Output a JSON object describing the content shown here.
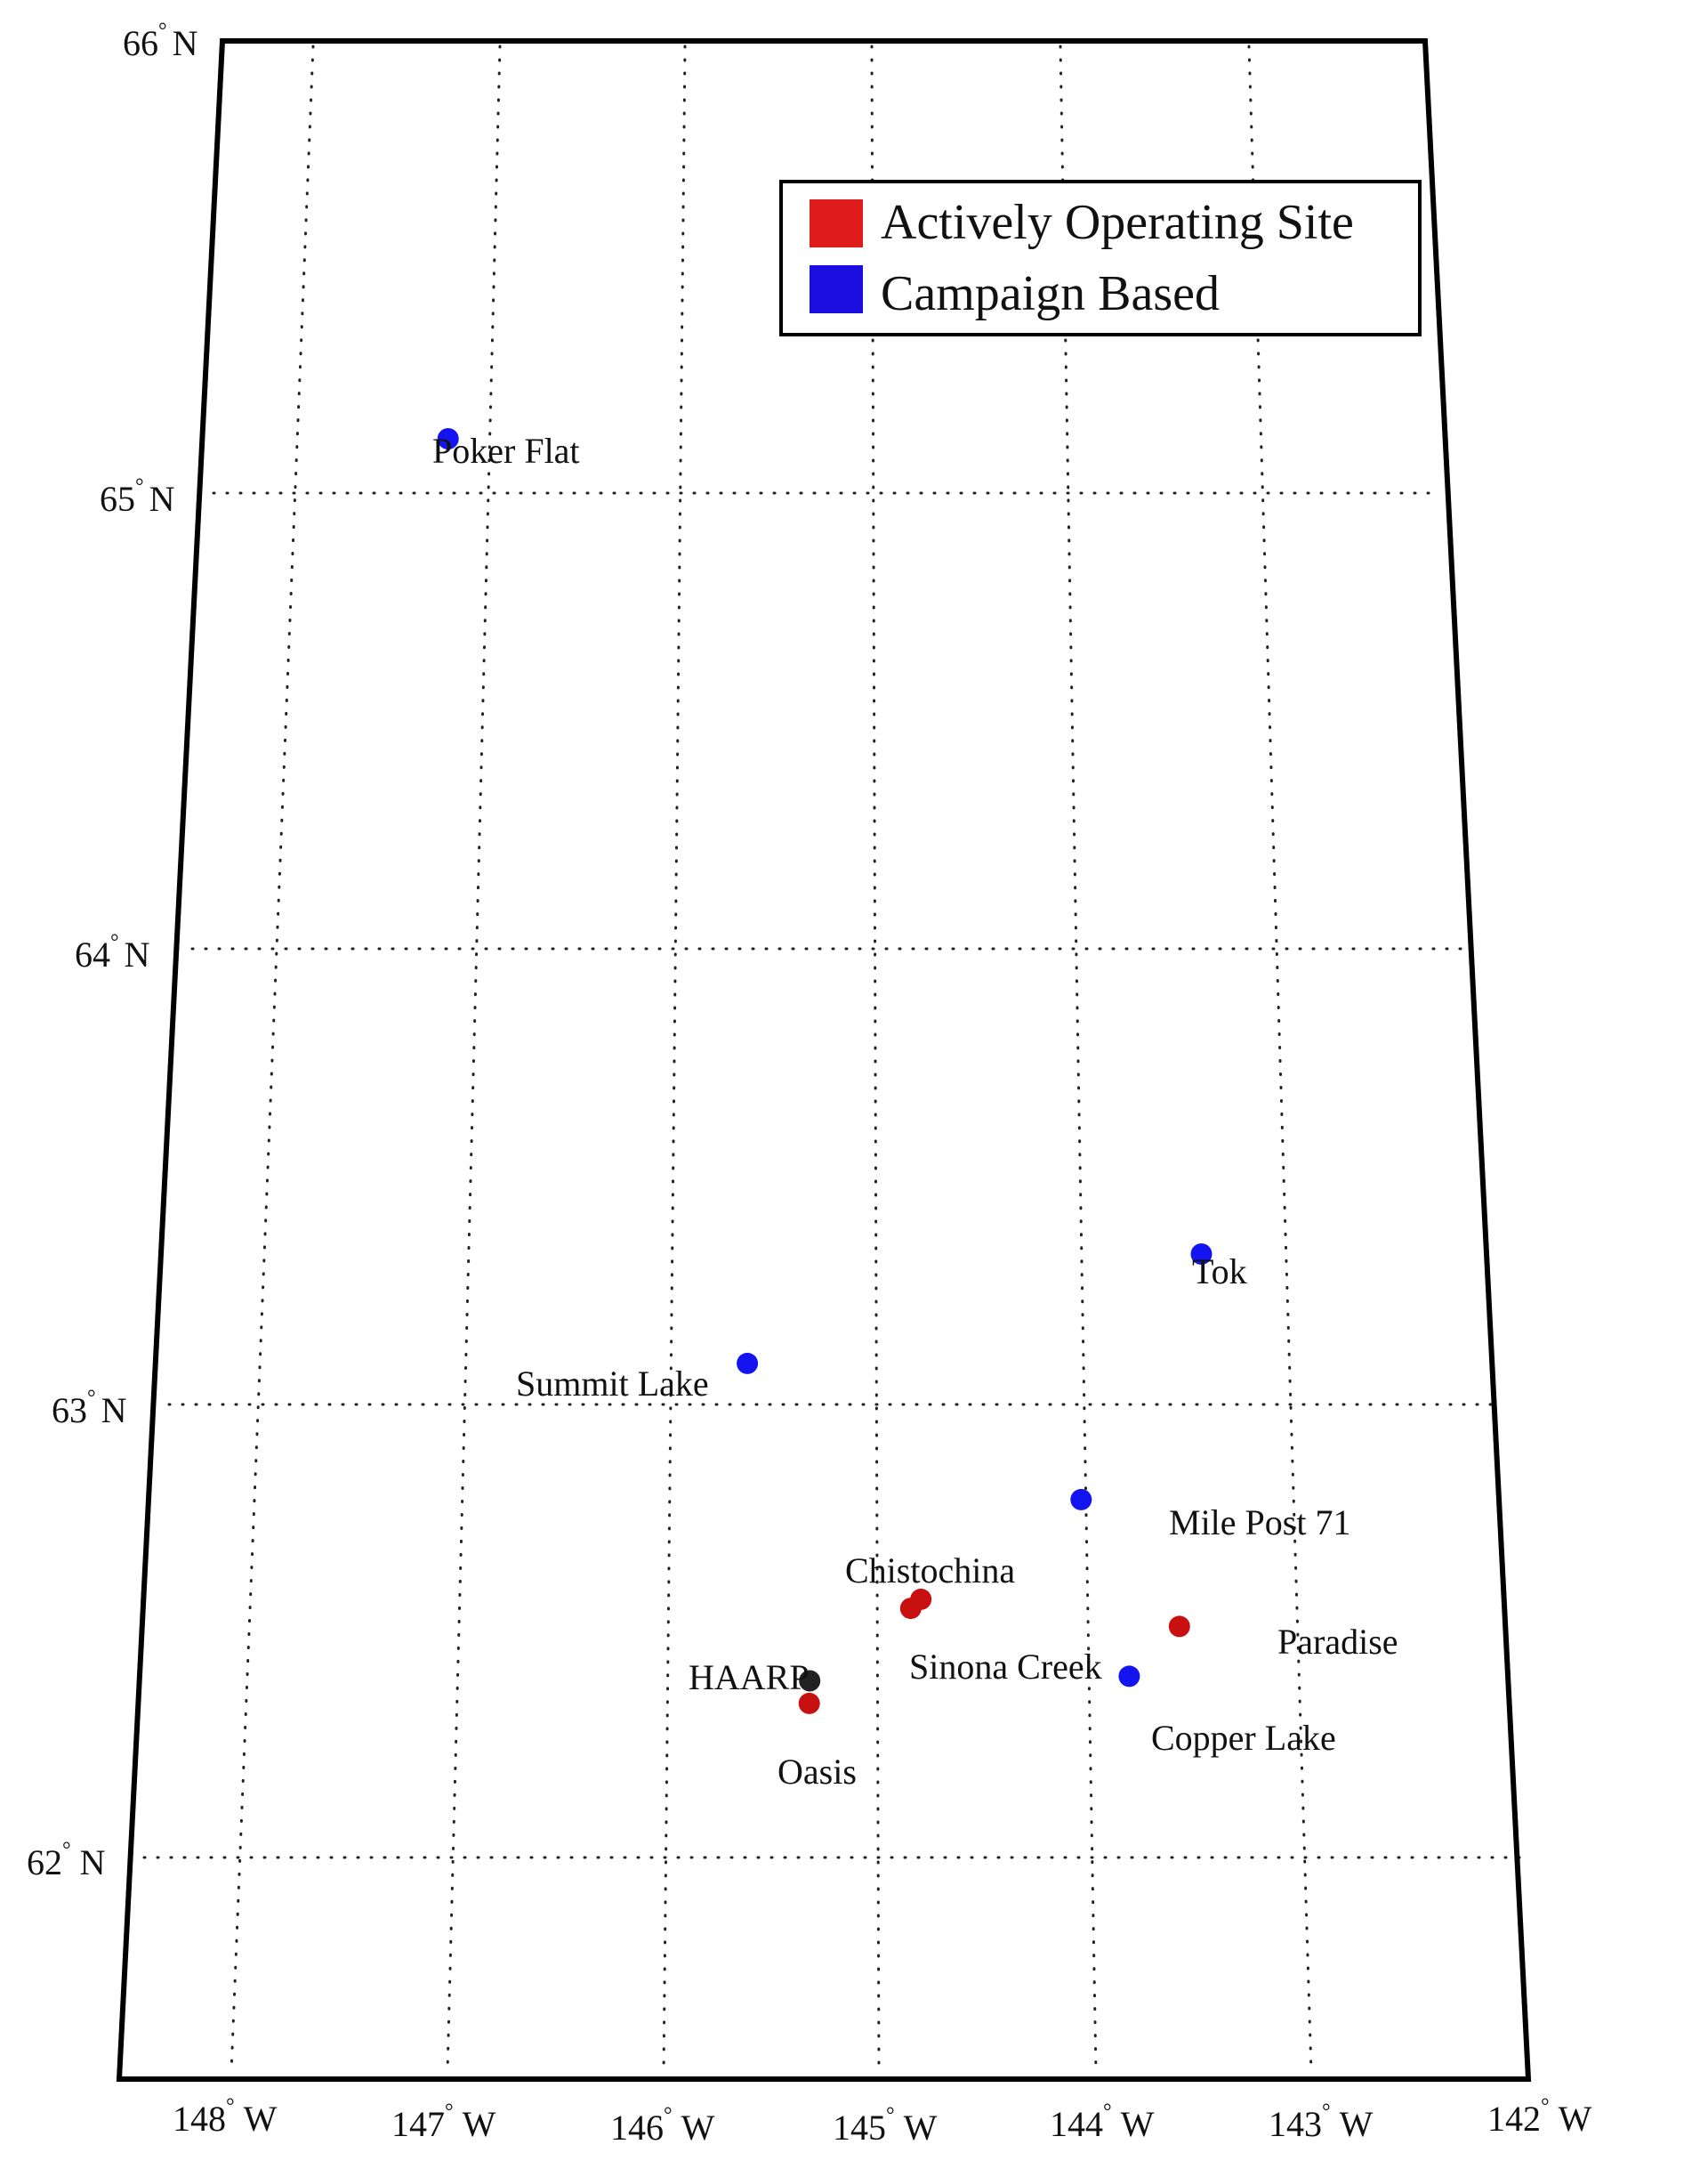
{
  "map": {
    "latitude_labels": [
      {
        "deg": "66",
        "hemi": "N"
      },
      {
        "deg": "65",
        "hemi": "N"
      },
      {
        "deg": "64",
        "hemi": "N"
      },
      {
        "deg": "63",
        "hemi": "N"
      },
      {
        "deg": "62",
        "hemi": "N"
      }
    ],
    "longitude_labels": [
      {
        "deg": "148",
        "hemi": "W"
      },
      {
        "deg": "147",
        "hemi": "W"
      },
      {
        "deg": "146",
        "hemi": "W"
      },
      {
        "deg": "145",
        "hemi": "W"
      },
      {
        "deg": "144",
        "hemi": "W"
      },
      {
        "deg": "143",
        "hemi": "W"
      },
      {
        "deg": "142",
        "hemi": "W"
      }
    ],
    "legend": {
      "items": [
        {
          "label": "Actively Operating Site",
          "color": "#e01b1b"
        },
        {
          "label": "Campaign Based",
          "color": "#1a0fe0"
        }
      ]
    },
    "sites": [
      {
        "name": "Poker Flat",
        "lon": -147.2,
        "lat": 65.12,
        "color": "#1414f0"
      },
      {
        "name": "Tok",
        "lon": -143.2,
        "lat": 63.33,
        "color": "#1414f0"
      },
      {
        "name": "Summit Lake",
        "lon": -145.5,
        "lat": 63.09,
        "color": "#1414f0"
      },
      {
        "name": "Mile Post 71",
        "lon": -143.8,
        "lat": 62.79,
        "color": "#1414f0"
      },
      {
        "name": "Chistochina",
        "lon": -144.6,
        "lat": 62.57,
        "color": "#c81010"
      },
      {
        "name": "Sinona Creek",
        "lon": -144.65,
        "lat": 62.55,
        "color": "#c81010"
      },
      {
        "name": "Paradise",
        "lon": -143.3,
        "lat": 62.51,
        "color": "#c81010"
      },
      {
        "name": "Copper Lake",
        "lon": -143.55,
        "lat": 62.4,
        "color": "#1414f0"
      },
      {
        "name": "HAARP",
        "lon": -145.15,
        "lat": 62.39,
        "color": "#222222"
      },
      {
        "name": "Oasis",
        "lon": -145.15,
        "lat": 62.34,
        "color": "#c81010"
      }
    ]
  }
}
